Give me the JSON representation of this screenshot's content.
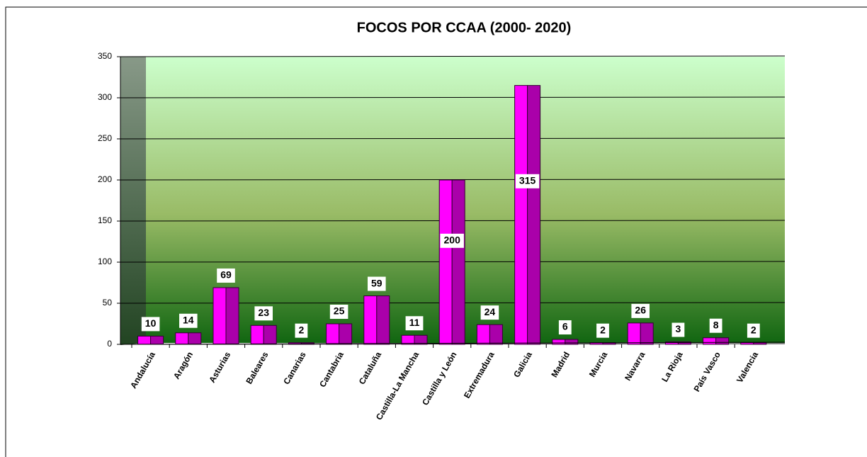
{
  "chart_data": {
    "type": "bar",
    "title": "FOCOS POR CCAA (2000- 2020)",
    "categories": [
      "Andalucía",
      "Aragón",
      "Asturias",
      "Baleares",
      "Canarias",
      "Cantabria",
      "Cataluña",
      "Castilla-La Mancha",
      "Castilla y León",
      "Extremadura",
      "Galicia",
      "Madrid",
      "Murcia",
      "Navarra",
      "La Rioja",
      "País Vasco",
      "Valencia"
    ],
    "values": [
      10,
      14,
      69,
      23,
      2,
      25,
      59,
      11,
      200,
      24,
      315,
      6,
      2,
      26,
      3,
      8,
      2
    ],
    "color": "#ff00ff",
    "ylim": [
      0,
      350
    ],
    "yticks": [
      0,
      50,
      100,
      150,
      200,
      250,
      300,
      350
    ],
    "grid": true
  }
}
